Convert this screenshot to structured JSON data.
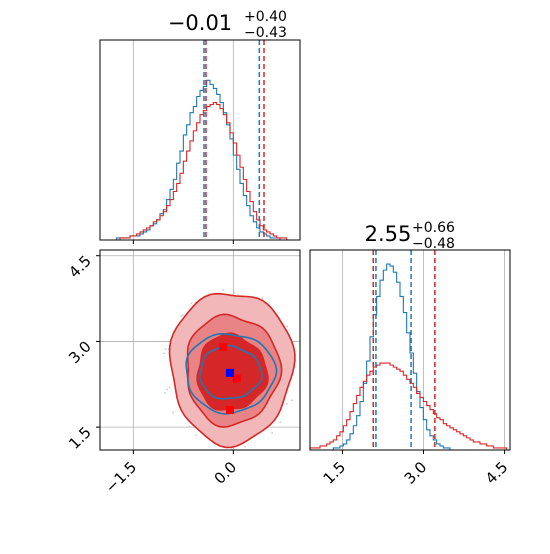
{
  "colors": {
    "blue": "#1f77b4",
    "red": "#d62728",
    "red_fill_outer": "#f2b7b8",
    "red_fill_mid": "#e98486",
    "grid": "#b0b0b0"
  },
  "chart_data": {
    "type": "corner",
    "parameters": [
      "",
      ""
    ],
    "param1": {
      "title_value": "−0.01",
      "title_plus": "+0.40",
      "title_minus": "−0.43",
      "xlim": [
        -2.0,
        1.0
      ],
      "ticks": [
        "−1.5",
        "0.0"
      ],
      "tick_values": [
        -1.5,
        0.0
      ],
      "blue_quantiles": [
        -0.44,
        0.39
      ],
      "red_quantiles": [
        -0.41,
        0.46
      ]
    },
    "param2": {
      "title_value": "2.55",
      "title_plus": "+0.66",
      "title_minus": "−0.48",
      "xlim": [
        0.9,
        4.6
      ],
      "ticks": [
        "1.5",
        "3.0",
        "4.5"
      ],
      "tick_values": [
        1.5,
        3.0,
        4.5
      ],
      "blue_quantiles": [
        2.12,
        2.77
      ],
      "red_quantiles": [
        2.07,
        3.21
      ]
    },
    "joint": {
      "xlim": [
        -2.0,
        1.0
      ],
      "ylim": [
        1.1,
        4.6
      ],
      "yticks": [
        "1.5",
        "3.0",
        "4.5"
      ],
      "ytick_values": [
        1.5,
        3.0,
        4.5
      ],
      "blue_marker": [
        -0.05,
        2.45
      ],
      "red_markers": [
        [
          -0.05,
          1.8
        ],
        [
          0.05,
          2.35
        ],
        [
          -0.15,
          2.9
        ]
      ]
    },
    "hist1": {
      "bins": [
        -2.0,
        1.0,
        60
      ],
      "blue": [
        0,
        0,
        0,
        0,
        0,
        1,
        1,
        1,
        1,
        2,
        2,
        2,
        3,
        4,
        5,
        7,
        8,
        10,
        13,
        15,
        20,
        25,
        30,
        38,
        44,
        52,
        57,
        63,
        66,
        71,
        74,
        76,
        79,
        77,
        75,
        72,
        68,
        63,
        57,
        50,
        42,
        35,
        28,
        22,
        17,
        12,
        9,
        6,
        4,
        3,
        2,
        1,
        1,
        1,
        0,
        0,
        0,
        0,
        0,
        0
      ],
      "red": [
        0,
        0,
        0,
        0,
        0,
        0,
        1,
        1,
        1,
        2,
        2,
        3,
        4,
        5,
        6,
        7,
        9,
        10,
        12,
        14,
        17,
        20,
        24,
        28,
        33,
        39,
        44,
        49,
        54,
        58,
        62,
        64,
        66,
        67,
        68,
        67,
        65,
        62,
        58,
        53,
        48,
        42,
        36,
        30,
        24,
        19,
        14,
        10,
        7,
        5,
        4,
        3,
        2,
        1,
        1,
        1,
        0,
        0,
        0,
        0
      ]
    },
    "hist2": {
      "bins": [
        0.9,
        4.6,
        60
      ],
      "blue": [
        0,
        0,
        0,
        0,
        0,
        0,
        0,
        1,
        1,
        2,
        3,
        5,
        8,
        12,
        17,
        24,
        33,
        44,
        56,
        67,
        76,
        84,
        89,
        92,
        91,
        88,
        83,
        76,
        68,
        58,
        48,
        38,
        29,
        21,
        15,
        10,
        7,
        5,
        3,
        2,
        1,
        1,
        0,
        0,
        0,
        0,
        0,
        0,
        0,
        0,
        0,
        0,
        0,
        0,
        0,
        0,
        0,
        0,
        0,
        0
      ],
      "red": [
        1,
        1,
        1,
        2,
        2,
        3,
        4,
        5,
        7,
        9,
        12,
        15,
        19,
        23,
        27,
        31,
        34,
        37,
        39,
        41,
        42,
        43,
        43,
        43,
        42,
        41,
        40,
        39,
        37,
        35,
        33,
        31,
        28,
        26,
        24,
        22,
        20,
        18,
        16,
        15,
        13,
        12,
        11,
        10,
        9,
        8,
        7,
        6,
        5,
        4,
        4,
        3,
        3,
        2,
        2,
        1,
        1,
        1,
        1,
        0
      ]
    }
  }
}
